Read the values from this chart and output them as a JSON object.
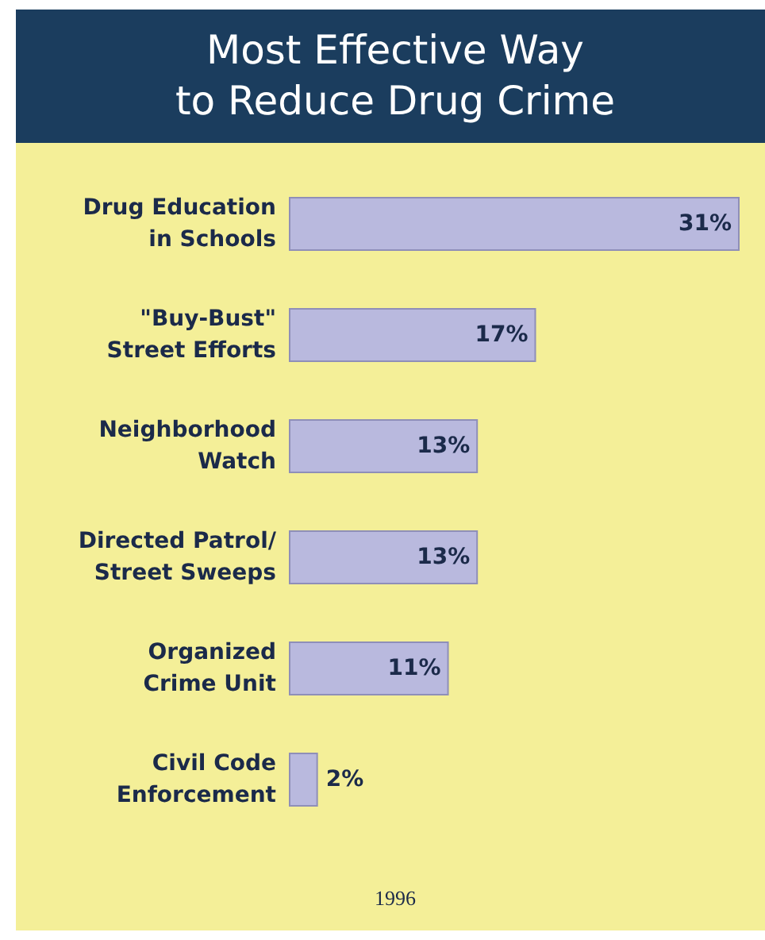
{
  "chart_data": {
    "type": "bar",
    "orientation": "horizontal",
    "title": "Most Effective Way\nto Reduce Drug Crime",
    "categories": [
      "Drug Education\nin Schools",
      "\"Buy-Bust\"\nStreet Efforts",
      "Neighborhood\nWatch",
      "Directed Patrol/\nStreet Sweeps",
      "Organized\nCrime Unit",
      "Civil Code\nEnforcement"
    ],
    "values": [
      31,
      17,
      13,
      13,
      11,
      2
    ],
    "value_labels": [
      "31%",
      "17%",
      "13%",
      "13%",
      "11%",
      "2%"
    ],
    "color": "#b9b9de",
    "annotations": [
      "1996"
    ]
  }
}
